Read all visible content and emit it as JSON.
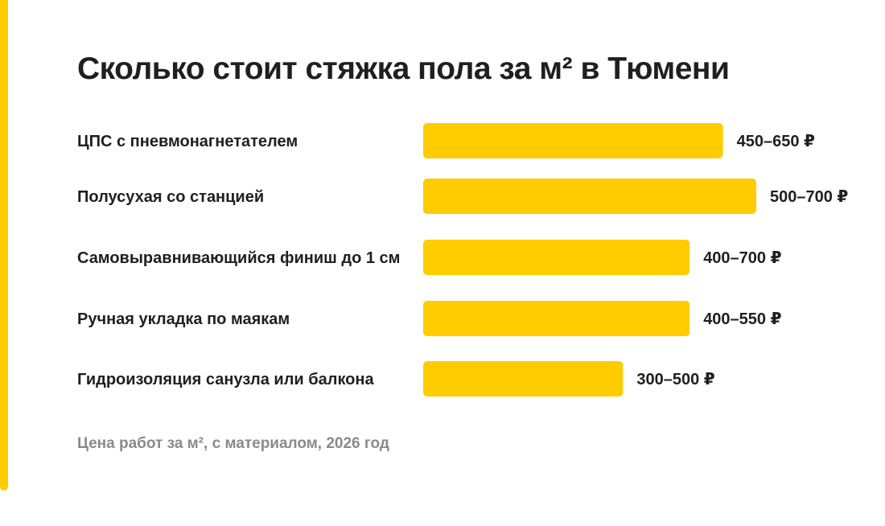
{
  "colors": {
    "accent": "#FFCC00",
    "bar": "#FFCC00",
    "text": "#1f1f1f",
    "note": "#8a8a8a"
  },
  "chart_data": {
    "type": "bar",
    "orientation": "horizontal",
    "title": "Сколько стоит стяжка пола за м² в Тюмени",
    "note": "Цена работ за м², с материалом, 2026 год",
    "categories": [
      "ЦПС с пневмонагнетателем",
      "Полусухая со станцией",
      "Самовыравнивающийся финиш до 1 см",
      "Ручная укладка по маякам",
      "Гидроизоляция санузла или балкона"
    ],
    "value_labels": [
      "450–650 ₽",
      "500–700 ₽",
      "400–700 ₽",
      "400–550 ₽",
      "300–500 ₽"
    ],
    "series": [
      {
        "values": [
          [
            450,
            650
          ],
          [
            500,
            700
          ],
          [
            400,
            700
          ],
          [
            400,
            550
          ],
          [
            300,
            500
          ]
        ]
      }
    ],
    "bar_measure": "min",
    "unit": "₽",
    "grid": false,
    "legend": "none"
  }
}
